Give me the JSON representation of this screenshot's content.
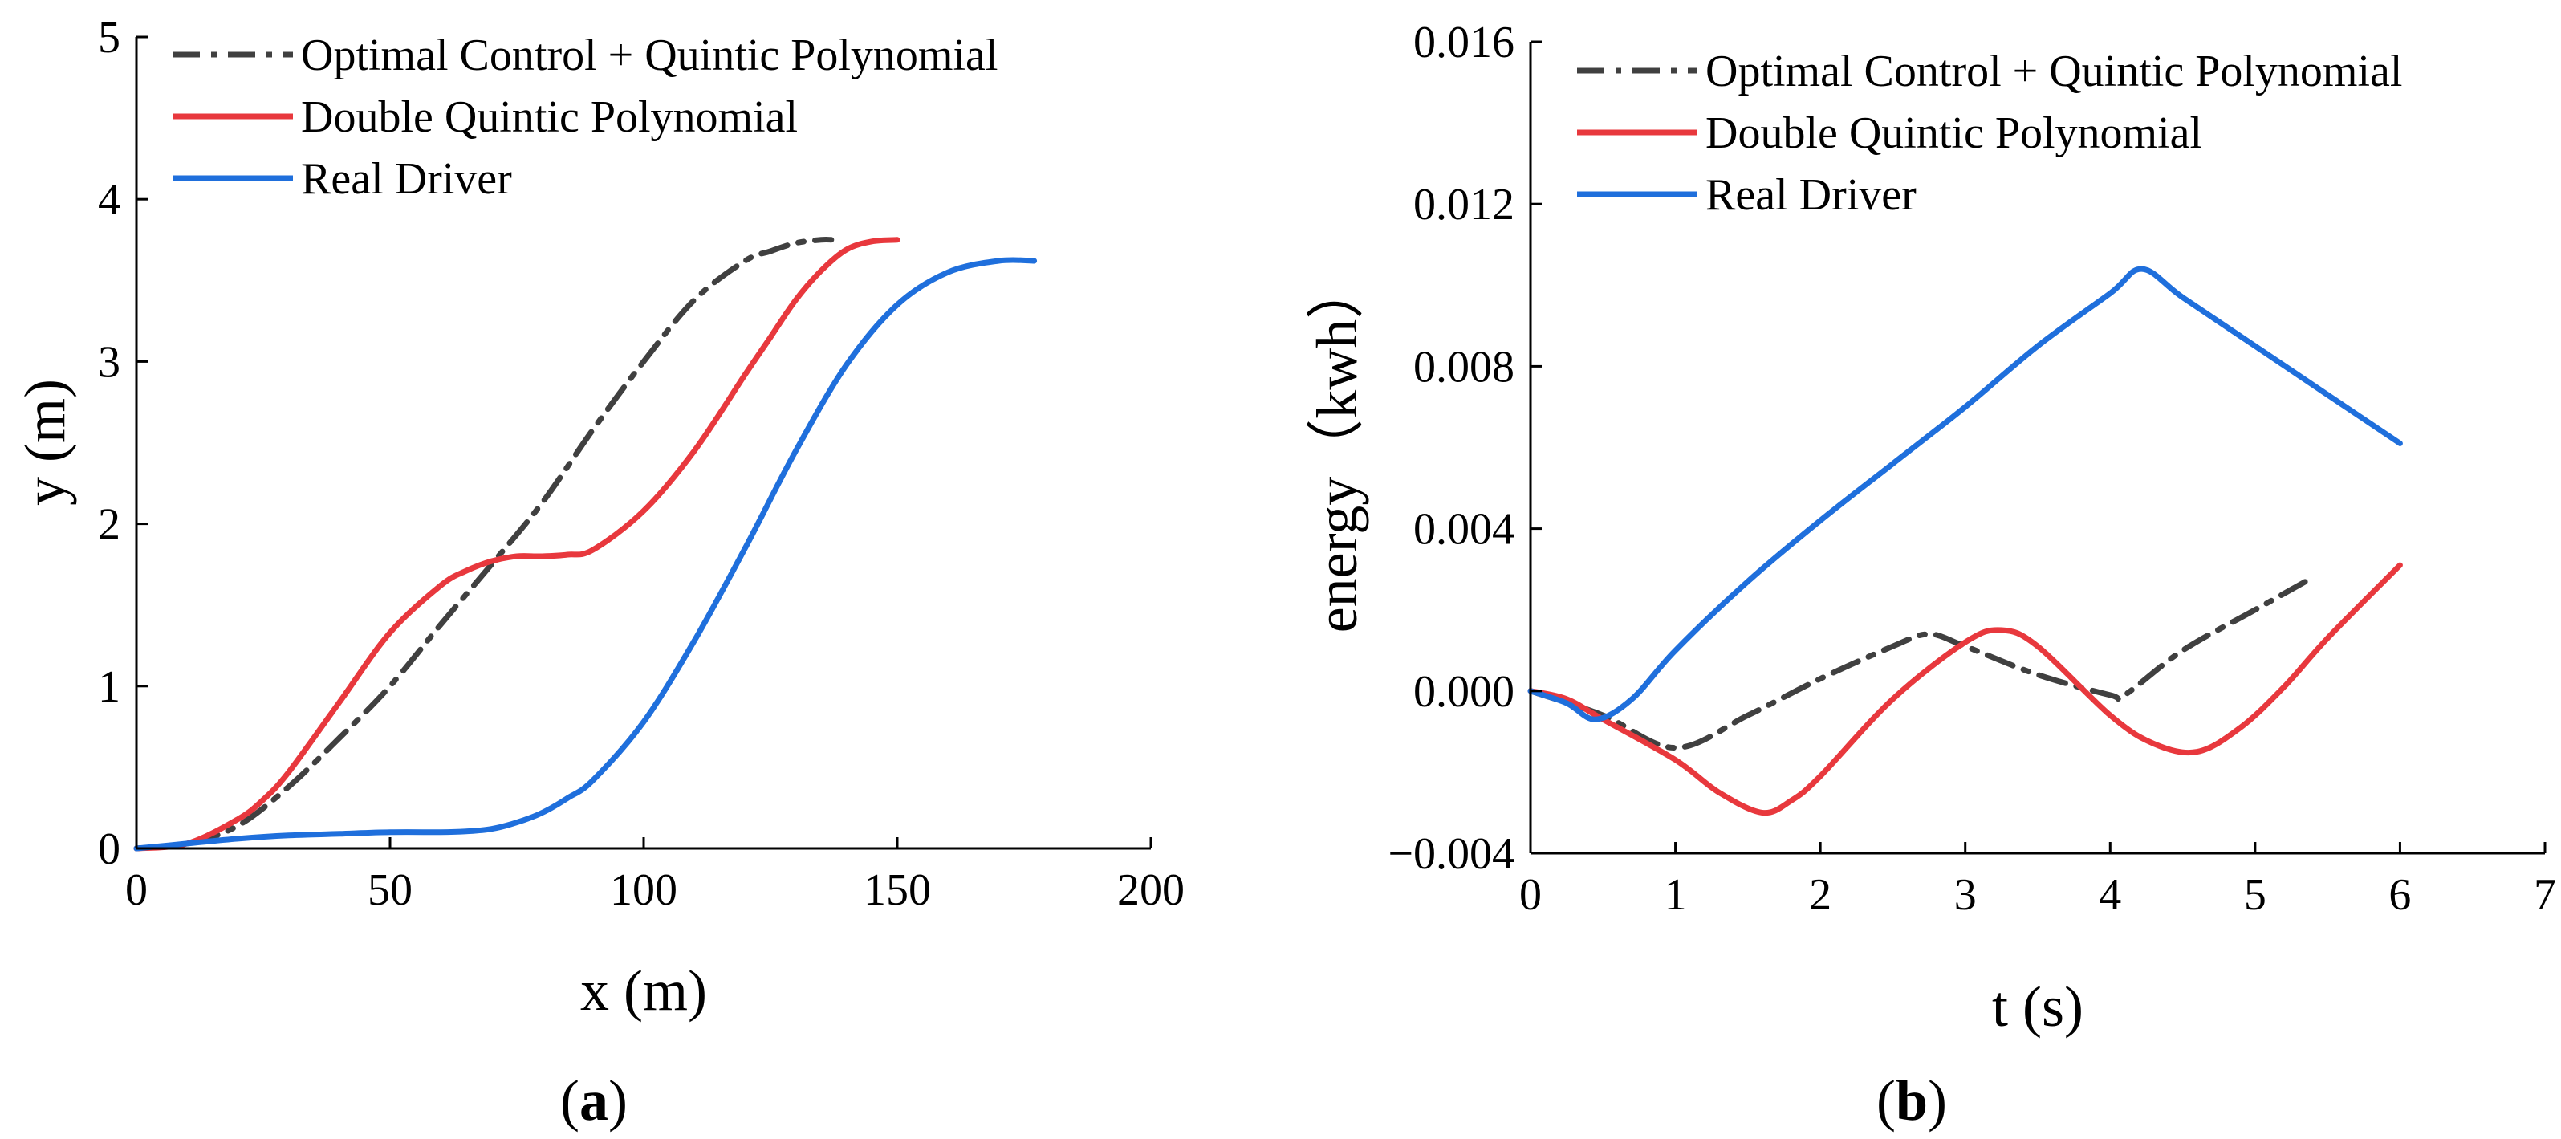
{
  "chart_data": [
    {
      "type": "line",
      "panel": "a",
      "panel_label": {
        "open": "(",
        "letter": "a",
        "close": ")"
      },
      "xlabel": "x (m)",
      "ylabel": "y (m)",
      "xlim": [
        0,
        200
      ],
      "ylim": [
        0,
        5
      ],
      "xticks": [
        "0",
        "50",
        "100",
        "150",
        "200"
      ],
      "yticks": [
        "0",
        "1",
        "2",
        "3",
        "4",
        "5"
      ],
      "legend_position": "top-left",
      "series": [
        {
          "name": "Optimal Control + Quintic Polynomial",
          "color": "#404040",
          "style": "dashdot",
          "x": [
            0,
            10,
            20,
            30,
            40,
            50,
            60,
            70,
            80,
            90,
            100,
            110,
            120,
            125,
            130,
            135,
            137
          ],
          "y": [
            0,
            0.03,
            0.14,
            0.38,
            0.68,
            1.0,
            1.38,
            1.75,
            2.13,
            2.58,
            3.0,
            3.38,
            3.62,
            3.68,
            3.73,
            3.75,
            3.75
          ]
        },
        {
          "name": "Double Quintic Polynomial",
          "color": "#e8383d",
          "style": "solid",
          "x": [
            0,
            10,
            20,
            25,
            30,
            40,
            50,
            60,
            65,
            70,
            75,
            80,
            85,
            90,
            100,
            110,
            120,
            125,
            130,
            135,
            140,
            145,
            150
          ],
          "y": [
            0,
            0.03,
            0.18,
            0.3,
            0.47,
            0.9,
            1.33,
            1.62,
            1.71,
            1.77,
            1.8,
            1.8,
            1.81,
            1.84,
            2.08,
            2.45,
            2.92,
            3.15,
            3.38,
            3.56,
            3.69,
            3.74,
            3.75
          ]
        },
        {
          "name": "Real Driver",
          "color": "#1f6fdc",
          "style": "solid",
          "x": [
            0,
            10,
            20,
            30,
            40,
            50,
            60,
            65,
            70,
            75,
            80,
            85,
            90,
            100,
            110,
            120,
            130,
            140,
            150,
            160,
            170,
            177
          ],
          "y": [
            0,
            0.03,
            0.06,
            0.08,
            0.09,
            0.1,
            0.1,
            0.105,
            0.12,
            0.16,
            0.22,
            0.31,
            0.42,
            0.78,
            1.28,
            1.85,
            2.45,
            2.98,
            3.35,
            3.55,
            3.62,
            3.62
          ]
        }
      ]
    },
    {
      "type": "line",
      "panel": "b",
      "panel_label": {
        "open": "(",
        "letter": "b",
        "close": ")"
      },
      "xlabel": "t (s)",
      "ylabel": "energy（kwh）",
      "xlim": [
        0,
        7
      ],
      "ylim": [
        -0.004,
        0.016
      ],
      "xticks": [
        "0",
        "1",
        "2",
        "3",
        "4",
        "5",
        "6",
        "7"
      ],
      "yticks": [
        "−0.004",
        "0.000",
        "0.004",
        "0.008",
        "0.012",
        "0.016"
      ],
      "legend_position": "top-left",
      "series": [
        {
          "name": "Optimal Control + Quintic Polynomial",
          "color": "#404040",
          "style": "dashdot",
          "x": [
            0,
            0.5,
            1.0,
            1.5,
            2.0,
            2.5,
            2.75,
            3.0,
            3.5,
            4.0,
            4.1,
            4.5,
            5.0,
            5.4
          ],
          "y": [
            0,
            -0.0006,
            -0.0014,
            -0.0006,
            0.0003,
            0.0011,
            0.0014,
            0.0011,
            0.0004,
            -0.0001,
            -0.0001,
            0.001,
            0.002,
            0.0028
          ]
        },
        {
          "name": "Double Quintic Polynomial",
          "color": "#e8383d",
          "style": "solid",
          "x": [
            0,
            0.25,
            0.5,
            1.0,
            1.3,
            1.6,
            1.8,
            2.0,
            2.5,
            3.0,
            3.25,
            3.5,
            4.0,
            4.3,
            4.6,
            4.9,
            5.2,
            5.5,
            6.0
          ],
          "y": [
            0,
            -0.0002,
            -0.0007,
            -0.0017,
            -0.0025,
            -0.003,
            -0.0027,
            -0.0021,
            -0.0002,
            0.0012,
            0.0015,
            0.0011,
            -0.0006,
            -0.0013,
            -0.0015,
            -0.0009,
            0.0001,
            0.0013,
            0.0031
          ]
        },
        {
          "name": "Real Driver",
          "color": "#1f6fdc",
          "style": "solid",
          "x": [
            0,
            0.25,
            0.45,
            0.7,
            1.0,
            1.5,
            2.0,
            2.5,
            3.0,
            3.5,
            4.0,
            4.22,
            4.5,
            5.0,
            5.5,
            6.0
          ],
          "y": [
            0,
            -0.0003,
            -0.0007,
            -0.0002,
            0.001,
            0.0027,
            0.0042,
            0.0056,
            0.007,
            0.0085,
            0.0098,
            0.0104,
            0.0097,
            0.0085,
            0.0073,
            0.0061
          ]
        }
      ]
    }
  ]
}
